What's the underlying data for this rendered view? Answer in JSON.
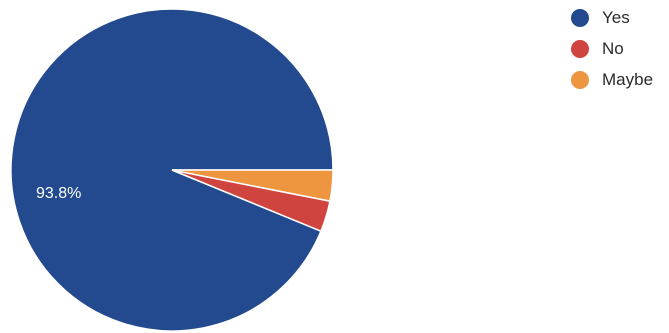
{
  "chart_data": {
    "type": "pie",
    "slices": [
      {
        "label": "Yes",
        "value": 93.8,
        "color": "#234a8e",
        "data_label": "93.8%"
      },
      {
        "label": "No",
        "value": 3.1,
        "color": "#d0443f",
        "data_label": ""
      },
      {
        "label": "Maybe",
        "value": 3.1,
        "color": "#ee9540",
        "data_label": ""
      }
    ],
    "legend_position": "top-right",
    "start_direction": "east, clockwise",
    "title": ""
  }
}
